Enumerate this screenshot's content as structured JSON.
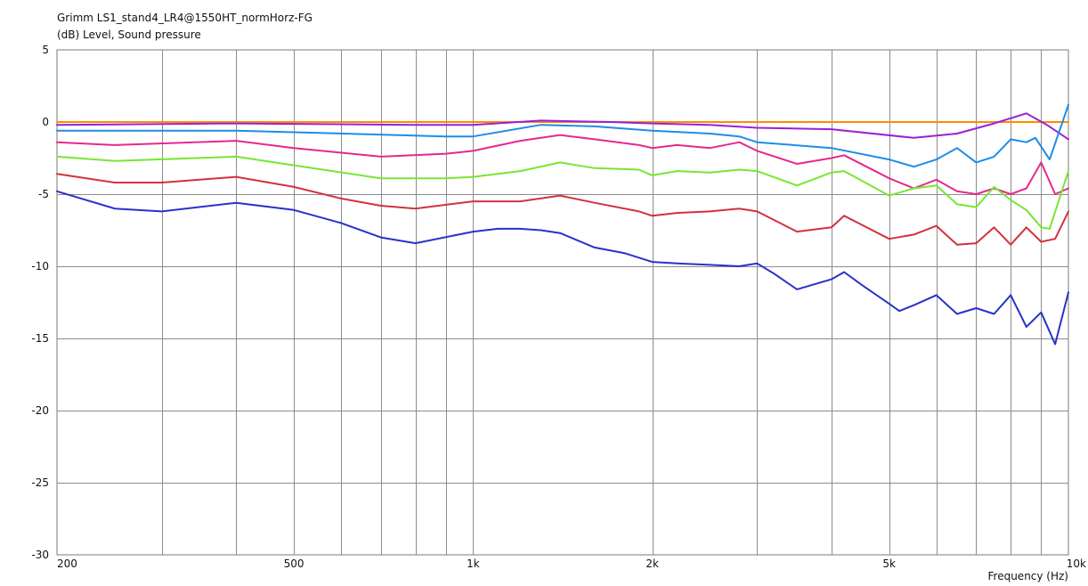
{
  "chart_data": {
    "type": "line",
    "title": "Grimm LS1_stand4_LR4@1550HT_normHorz-FG",
    "ylabel": "(dB)  Level, Sound pressure",
    "xlabel": "Frequency  (Hz)",
    "x_scale": "log",
    "xlim": [
      200,
      10000
    ],
    "ylim": [
      -30,
      5
    ],
    "grid": true,
    "legend": "none",
    "x_ticks": [
      {
        "value": 200,
        "label": "200"
      },
      {
        "value": 500,
        "label": "500"
      },
      {
        "value": 1000,
        "label": "1k"
      },
      {
        "value": 2000,
        "label": "2k"
      },
      {
        "value": 5000,
        "label": "5k"
      },
      {
        "value": 10000,
        "label": "10k"
      }
    ],
    "y_ticks": [
      {
        "value": 5,
        "label": "5"
      },
      {
        "value": 0,
        "label": "0"
      },
      {
        "value": -5,
        "label": "-5"
      },
      {
        "value": -10,
        "label": "-10"
      },
      {
        "value": -15,
        "label": "-15"
      },
      {
        "value": -20,
        "label": "-20"
      },
      {
        "value": -25,
        "label": "-25"
      },
      {
        "value": -30,
        "label": "-30"
      }
    ],
    "series": [
      {
        "color": "#ff8c00",
        "x": [
          200,
          10000
        ],
        "y": [
          0,
          0
        ]
      },
      {
        "color": "#9b1fd6",
        "x": [
          200,
          400,
          800,
          1000,
          1300,
          1700,
          2000,
          2500,
          3000,
          4000,
          5500,
          6500,
          7500,
          8500,
          9200,
          10000
        ],
        "y": [
          -0.2,
          -0.1,
          -0.2,
          -0.2,
          0.1,
          0.0,
          -0.1,
          -0.2,
          -0.4,
          -0.5,
          -1.1,
          -0.8,
          -0.1,
          0.6,
          -0.2,
          -1.2
        ]
      },
      {
        "color": "#1e8ce6",
        "x": [
          200,
          400,
          900,
          1000,
          1300,
          1600,
          2000,
          2500,
          2800,
          3000,
          4000,
          5000,
          5500,
          6000,
          6500,
          7000,
          7500,
          8000,
          8500,
          8800,
          9300,
          10000
        ],
        "y": [
          -0.6,
          -0.6,
          -1.0,
          -1.0,
          -0.2,
          -0.3,
          -0.6,
          -0.8,
          -1.0,
          -1.4,
          -1.8,
          -2.6,
          -3.1,
          -2.6,
          -1.8,
          -2.8,
          -2.4,
          -1.2,
          -1.4,
          -1.1,
          -2.6,
          1.2
        ]
      },
      {
        "color": "#e6288c",
        "x": [
          200,
          250,
          400,
          500,
          700,
          900,
          1000,
          1200,
          1400,
          1600,
          1900,
          2000,
          2200,
          2500,
          2800,
          3000,
          3500,
          4000,
          4200,
          5000,
          5500,
          6000,
          6500,
          7000,
          7500,
          8000,
          8500,
          9000,
          9500,
          10000
        ],
        "y": [
          -1.4,
          -1.6,
          -1.3,
          -1.8,
          -2.4,
          -2.2,
          -2.0,
          -1.3,
          -0.9,
          -1.2,
          -1.6,
          -1.8,
          -1.6,
          -1.8,
          -1.4,
          -2.0,
          -2.9,
          -2.5,
          -2.3,
          -3.9,
          -4.6,
          -4.0,
          -4.8,
          -5.0,
          -4.6,
          -5.0,
          -4.6,
          -2.8,
          -5.0,
          -4.6
        ]
      },
      {
        "color": "#78e632",
        "x": [
          200,
          250,
          400,
          500,
          700,
          900,
          1000,
          1200,
          1400,
          1600,
          1900,
          2000,
          2200,
          2500,
          2800,
          3000,
          3500,
          4000,
          4200,
          5000,
          5500,
          6000,
          6500,
          7000,
          7500,
          8000,
          8500,
          9000,
          9300,
          10000
        ],
        "y": [
          -2.4,
          -2.7,
          -2.4,
          -3.0,
          -3.9,
          -3.9,
          -3.8,
          -3.4,
          -2.8,
          -3.2,
          -3.3,
          -3.7,
          -3.4,
          -3.5,
          -3.3,
          -3.4,
          -4.4,
          -3.5,
          -3.4,
          -5.1,
          -4.6,
          -4.4,
          -5.7,
          -5.9,
          -4.5,
          -5.4,
          -6.1,
          -7.3,
          -7.4,
          -3.4
        ]
      },
      {
        "color": "#d2323c",
        "x": [
          200,
          250,
          300,
          400,
          500,
          600,
          700,
          800,
          1000,
          1200,
          1400,
          1600,
          1900,
          2000,
          2200,
          2500,
          2800,
          3000,
          3500,
          4000,
          4200,
          5000,
          5500,
          6000,
          6500,
          7000,
          7500,
          8000,
          8500,
          9000,
          9500,
          10000
        ],
        "y": [
          -3.6,
          -4.2,
          -4.2,
          -3.8,
          -4.5,
          -5.3,
          -5.8,
          -6.0,
          -5.5,
          -5.5,
          -5.1,
          -5.6,
          -6.2,
          -6.5,
          -6.3,
          -6.2,
          -6.0,
          -6.2,
          -7.6,
          -7.3,
          -6.5,
          -8.1,
          -7.8,
          -7.2,
          -8.5,
          -8.4,
          -7.3,
          -8.5,
          -7.3,
          -8.3,
          -8.1,
          -6.2
        ]
      },
      {
        "color": "#2832c8",
        "x": [
          200,
          250,
          300,
          400,
          500,
          600,
          700,
          800,
          1000,
          1100,
          1200,
          1300,
          1400,
          1600,
          1800,
          2000,
          2200,
          2500,
          2800,
          3000,
          3200,
          3500,
          4000,
          4200,
          4500,
          5000,
          5200,
          5500,
          6000,
          6500,
          7000,
          7500,
          8000,
          8500,
          9000,
          9500,
          10000
        ],
        "y": [
          -4.8,
          -6.0,
          -6.2,
          -5.6,
          -6.1,
          -7.0,
          -8.0,
          -8.4,
          -7.6,
          -7.4,
          -7.4,
          -7.5,
          -7.7,
          -8.7,
          -9.1,
          -9.7,
          -9.8,
          -9.9,
          -10.0,
          -9.8,
          -10.5,
          -11.6,
          -10.9,
          -10.4,
          -11.3,
          -12.6,
          -13.1,
          -12.7,
          -12.0,
          -13.3,
          -12.9,
          -13.3,
          -12.0,
          -14.2,
          -13.2,
          -15.4,
          -11.8
        ]
      }
    ]
  }
}
